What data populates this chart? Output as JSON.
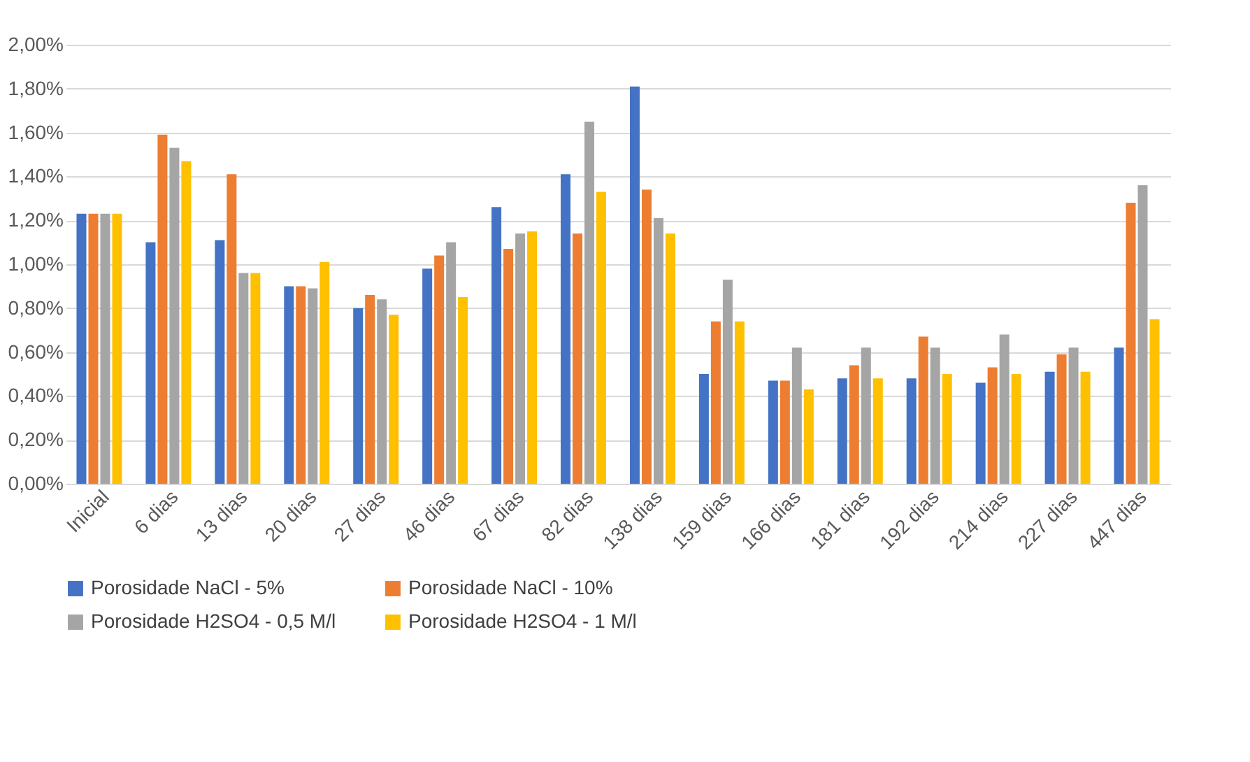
{
  "chart_data": {
    "type": "bar",
    "categories": [
      "Inicial",
      "6 dias",
      "13 dias",
      "20 dias",
      "27 dias",
      "46 dias",
      "67 dias",
      "82 dias",
      "138 dias",
      "159 dias",
      "166 dias",
      "181 dias",
      "192 dias",
      "214 dias",
      "227 dias",
      "447 dias"
    ],
    "series": [
      {
        "name": "Porosidade NaCl - 5%",
        "color": "#4472c4",
        "values": [
          1.23,
          1.1,
          1.11,
          0.9,
          0.8,
          0.98,
          1.26,
          1.41,
          1.81,
          0.5,
          0.47,
          0.48,
          0.48,
          0.46,
          0.51,
          0.62
        ]
      },
      {
        "name": "Porosidade NaCl - 10%",
        "color": "#ed7d31",
        "values": [
          1.23,
          1.59,
          1.41,
          0.9,
          0.86,
          1.04,
          1.07,
          1.14,
          1.34,
          0.74,
          0.47,
          0.54,
          0.67,
          0.53,
          0.59,
          1.28
        ]
      },
      {
        "name": "Porosidade H2SO4  - 0,5 M/l",
        "color": "#a5a5a5",
        "values": [
          1.23,
          1.53,
          0.96,
          0.89,
          0.84,
          1.1,
          1.14,
          1.65,
          1.21,
          0.93,
          0.62,
          0.62,
          0.62,
          0.68,
          0.62,
          1.36
        ]
      },
      {
        "name": "Porosidade H2SO4  - 1 M/l",
        "color": "#ffc000",
        "values": [
          1.23,
          1.47,
          0.96,
          1.01,
          0.77,
          0.85,
          1.15,
          1.33,
          1.14,
          0.74,
          0.43,
          0.48,
          0.5,
          0.5,
          0.51,
          0.75
        ]
      }
    ],
    "ylim": [
      0,
      2.0
    ],
    "yticks": [
      {
        "value": 0,
        "label": "0,00%"
      },
      {
        "value": 0.2,
        "label": "0,20%"
      },
      {
        "value": 0.4,
        "label": "0,40%"
      },
      {
        "value": 0.6,
        "label": "0,60%"
      },
      {
        "value": 0.8,
        "label": "0,80%"
      },
      {
        "value": 1.0,
        "label": "1,00%"
      },
      {
        "value": 1.2,
        "label": "1,20%"
      },
      {
        "value": 1.4,
        "label": "1,40%"
      },
      {
        "value": 1.6,
        "label": "1,60%"
      },
      {
        "value": 1.8,
        "label": "1,80%"
      },
      {
        "value": 2.0,
        "label": "2,00%"
      }
    ],
    "grid": "y",
    "legend": "bottom"
  }
}
